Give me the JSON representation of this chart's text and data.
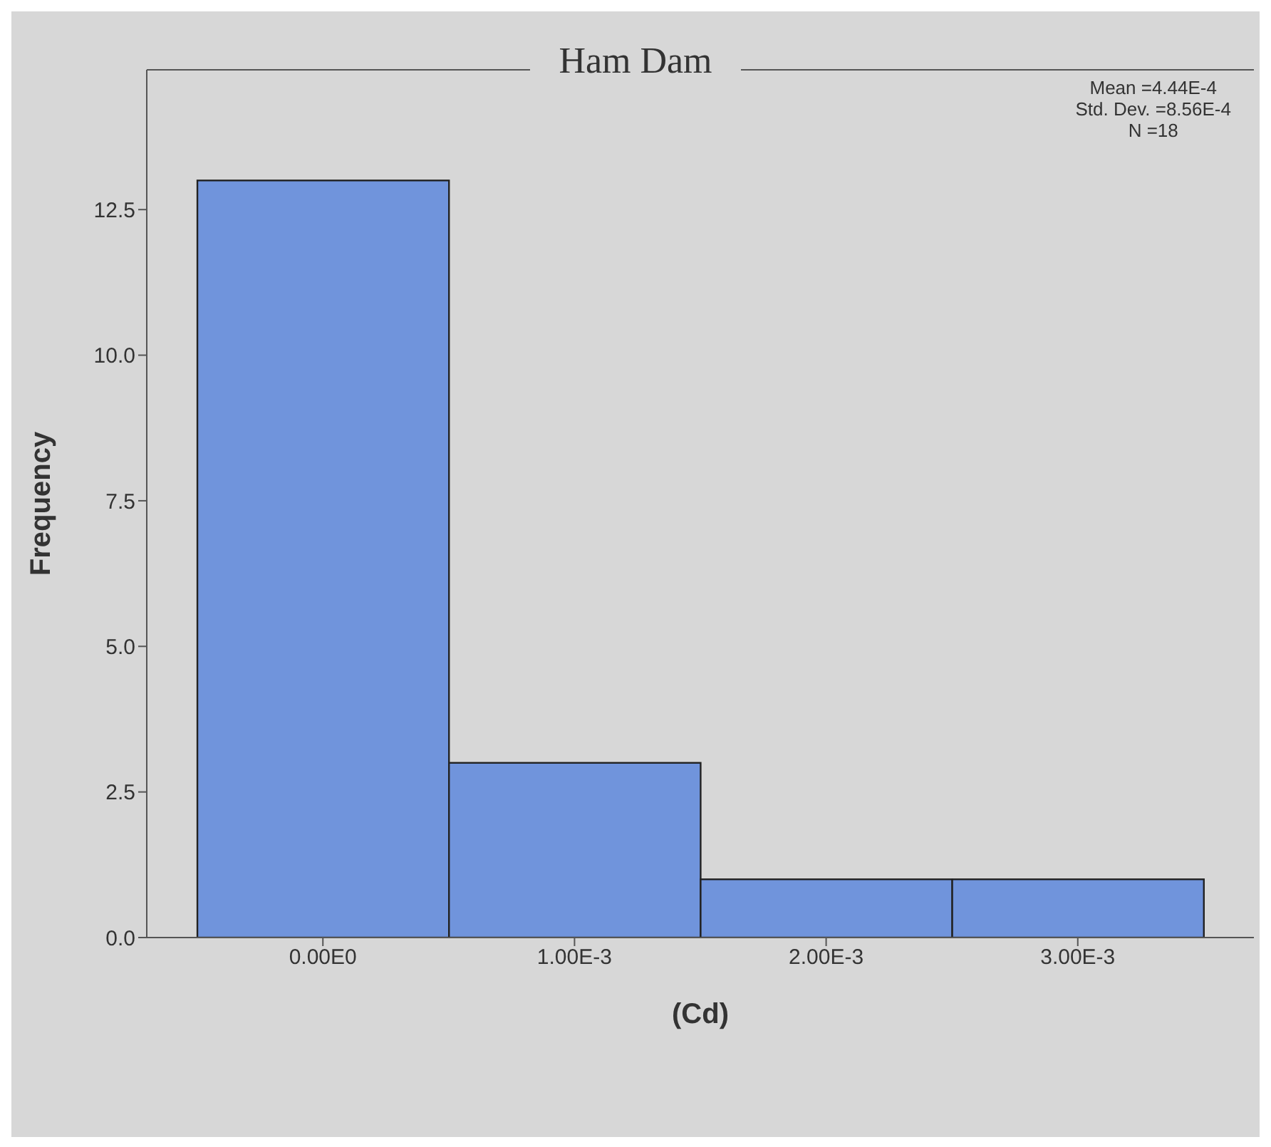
{
  "chart_data": {
    "type": "histogram",
    "title": "Ham Dam",
    "xlabel": "(Cd)",
    "ylabel": "Frequency",
    "bins": [
      -0.0005,
      0.0005,
      0.0015,
      0.0025,
      0.0035
    ],
    "values": [
      13,
      3,
      1,
      1
    ],
    "color": "#7094dc",
    "xlim": [
      -0.0007,
      0.0037
    ],
    "xticks": [
      {
        "value": 0,
        "label": "0.00E0"
      },
      {
        "value": 0.001,
        "label": "1.00E-3"
      },
      {
        "value": 0.002,
        "label": "2.00E-3"
      },
      {
        "value": 0.003,
        "label": "3.00E-3"
      }
    ],
    "ylim": [
      0,
      14.9
    ],
    "yticks": [
      {
        "value": 0,
        "label": "0.0"
      },
      {
        "value": 2.5,
        "label": "2.5"
      },
      {
        "value": 5,
        "label": "5.0"
      },
      {
        "value": 7.5,
        "label": "7.5"
      },
      {
        "value": 10,
        "label": "10.0"
      },
      {
        "value": 12.5,
        "label": "12.5"
      }
    ],
    "annotations": [
      "Mean =4.44E-4",
      "Std. Dev. =8.56E-4",
      "N =18"
    ]
  }
}
